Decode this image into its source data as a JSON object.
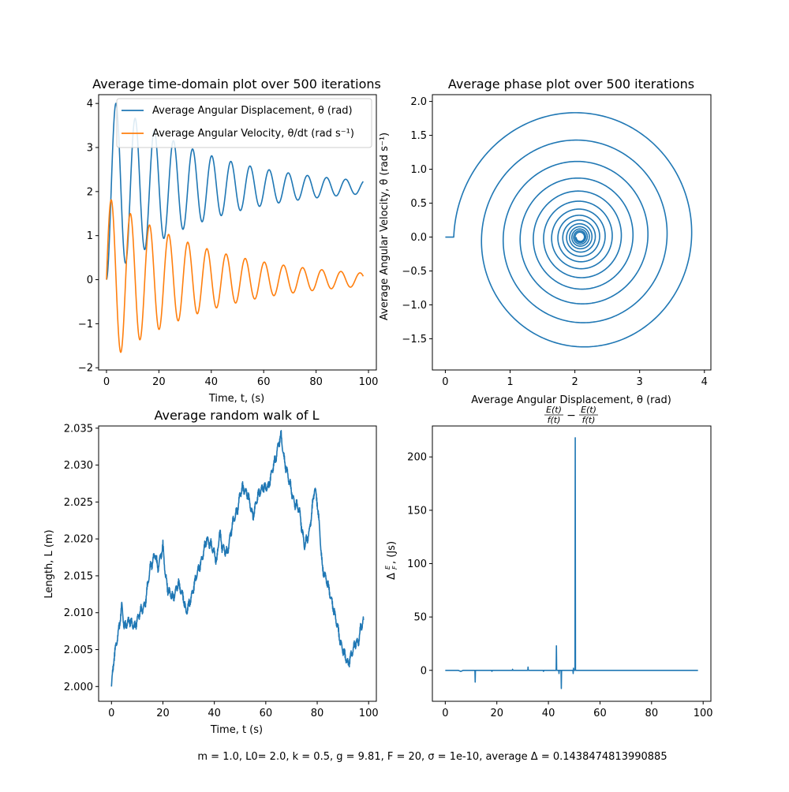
{
  "figure": {
    "footer": "m = 1.0, L0= 2.0, k = 0.5, g = 9.81, F = 20, σ = 1e-10, average Δ = 0.1438474813990885",
    "colors": {
      "blue": "#1f77b4",
      "orange": "#ff7f0e"
    }
  },
  "chart_data": [
    {
      "id": "time",
      "type": "line",
      "title": "Average time-domain plot over 500 iterations",
      "xlabel": "Time, t, (s)",
      "ylabel": "",
      "xlim": [
        -3,
        103
      ],
      "ylim": [
        -2.05,
        4.2
      ],
      "xticks": [
        0,
        20,
        40,
        60,
        80,
        100
      ],
      "xtick_labels": [
        "0",
        "20",
        "40",
        "60",
        "80",
        "100"
      ],
      "yticks": [
        -2,
        -1,
        0,
        1,
        2,
        3,
        4
      ],
      "ytick_labels": [
        "−2",
        "−1",
        "0",
        "1",
        "2",
        "3",
        "4"
      ],
      "legend": {
        "position": "top-right",
        "entries": [
          "Average Angular Displacement, θ (rad)",
          "Average Angular Velocity, θ/dt (rad s⁻¹)"
        ]
      },
      "series": [
        {
          "name": "Average Angular Displacement, θ (rad)",
          "color": "#1f77b4",
          "model": {
            "offset": 2.1,
            "amp0": 2.1,
            "amp_end": 0.15,
            "omega": 0.86,
            "t_max": 98,
            "kind": "displacement"
          }
        },
        {
          "name": "Average Angular Velocity, θ/dt (rad s⁻¹)",
          "color": "#ff7f0e",
          "model": {
            "offset": 0.0,
            "amp0": 1.9,
            "amp_end": 0.15,
            "omega": 0.86,
            "t_max": 98,
            "kind": "velocity"
          }
        }
      ]
    },
    {
      "id": "phase",
      "type": "line",
      "title": "Average phase plot over 500 iterations",
      "xlabel": "Average Angular Displacement, θ (rad)",
      "ylabel": "Average Angular Velocity, θ (rad s⁻¹)",
      "xlim": [
        -0.2,
        4.1
      ],
      "ylim": [
        -1.96,
        2.1
      ],
      "xticks": [
        0,
        1,
        2,
        3,
        4
      ],
      "xtick_labels": [
        "0",
        "1",
        "2",
        "3",
        "4"
      ],
      "yticks": [
        -1.5,
        -1.0,
        -0.5,
        0.0,
        0.5,
        1.0,
        1.5,
        2.0
      ],
      "ytick_labels": [
        "−1.5",
        "−1.0",
        "−0.5",
        "0.0",
        "0.5",
        "1.0",
        "1.5",
        "2.0"
      ],
      "series": [
        {
          "name": "phase",
          "color": "#1f77b4",
          "model": {
            "center_x": 2.08,
            "start_x": 0.0,
            "start_y": 0.0,
            "amp0": 1.95,
            "amp_end": 0.06,
            "turns": 14
          }
        }
      ]
    },
    {
      "id": "walk",
      "type": "line",
      "title": "Average random walk of L",
      "xlabel": "Time, t (s)",
      "ylabel": "Length, L (m)",
      "xlim": [
        -5,
        103
      ],
      "ylim": [
        1.998,
        2.0353
      ],
      "xticks": [
        0,
        20,
        40,
        60,
        80,
        100
      ],
      "xtick_labels": [
        "0",
        "20",
        "40",
        "60",
        "80",
        "100"
      ],
      "yticks": [
        2.0,
        2.005,
        2.01,
        2.015,
        2.02,
        2.025,
        2.03,
        2.035
      ],
      "ytick_labels": [
        "2.000",
        "2.005",
        "2.010",
        "2.015",
        "2.020",
        "2.025",
        "2.030",
        "2.035"
      ],
      "series": [
        {
          "name": "L",
          "color": "#1f77b4",
          "points": [
            [
              0,
              2.0
            ],
            [
              1,
              2.004
            ],
            [
              2,
              2.006
            ],
            [
              3,
              2.008
            ],
            [
              4,
              2.011
            ],
            [
              5,
              2.008
            ],
            [
              7,
              2.009
            ],
            [
              9,
              2.008
            ],
            [
              11,
              2.01
            ],
            [
              13,
              2.011
            ],
            [
              15,
              2.016
            ],
            [
              17,
              2.018
            ],
            [
              18,
              2.016
            ],
            [
              20,
              2.019
            ],
            [
              21,
              2.015
            ],
            [
              22,
              2.013
            ],
            [
              24,
              2.012
            ],
            [
              26,
              2.014
            ],
            [
              28,
              2.012
            ],
            [
              29,
              2.01
            ],
            [
              31,
              2.012
            ],
            [
              33,
              2.015
            ],
            [
              35,
              2.017
            ],
            [
              37,
              2.02
            ],
            [
              39,
              2.019
            ],
            [
              41,
              2.017
            ],
            [
              42,
              2.021
            ],
            [
              43,
              2.019
            ],
            [
              45,
              2.018
            ],
            [
              47,
              2.022
            ],
            [
              49,
              2.024
            ],
            [
              50,
              2.026
            ],
            [
              51,
              2.027
            ],
            [
              53,
              2.026
            ],
            [
              55,
              2.023
            ],
            [
              57,
              2.026
            ],
            [
              59,
              2.027
            ],
            [
              61,
              2.027
            ],
            [
              63,
              2.03
            ],
            [
              64,
              2.031
            ],
            [
              65,
              2.033
            ],
            [
              66,
              2.034
            ],
            [
              67,
              2.031
            ],
            [
              69,
              2.028
            ],
            [
              71,
              2.025
            ],
            [
              73,
              2.024
            ],
            [
              75,
              2.019
            ],
            [
              77,
              2.021
            ],
            [
              79,
              2.027
            ],
            [
              80,
              2.025
            ],
            [
              81,
              2.021
            ],
            [
              82,
              2.016
            ],
            [
              84,
              2.014
            ],
            [
              86,
              2.011
            ],
            [
              88,
              2.008
            ],
            [
              89,
              2.006
            ],
            [
              90,
              2.005
            ],
            [
              91,
              2.004
            ],
            [
              92,
              2.003
            ],
            [
              93,
              2.004
            ],
            [
              94,
              2.005
            ],
            [
              95,
              2.006
            ],
            [
              96,
              2.006
            ],
            [
              97,
              2.008
            ],
            [
              98,
              2.009
            ]
          ]
        }
      ]
    },
    {
      "id": "energy",
      "type": "line",
      "title": "E(t)/f(t) − E(t)/f(t)",
      "title_parts": {
        "n1": "E(t)",
        "d1": "f(t)",
        "minus": "−",
        "n2": "E(t)",
        "d2": "f(t)"
      },
      "xlabel": "",
      "ylabel": "ΔE/F, (Js)",
      "ylabel_parts": {
        "delta": "Δ",
        "num": "E",
        "den": "F",
        "unit": ", (Js)"
      },
      "xlim": [
        -5,
        103
      ],
      "ylim": [
        -29,
        229
      ],
      "xticks": [
        0,
        20,
        40,
        60,
        80,
        100
      ],
      "xtick_labels": [
        "0",
        "20",
        "40",
        "60",
        "80",
        "100"
      ],
      "yticks": [
        0,
        50,
        100,
        150,
        200
      ],
      "ytick_labels": [
        "0",
        "50",
        "100",
        "150",
        "200"
      ],
      "series": [
        {
          "name": "delta",
          "color": "#1f77b4",
          "points": [
            [
              0,
              0
            ],
            [
              5,
              0
            ],
            [
              6,
              -1
            ],
            [
              7,
              0
            ],
            [
              11.5,
              0
            ],
            [
              11.6,
              -11
            ],
            [
              11.7,
              0
            ],
            [
              18,
              0
            ],
            [
              18.1,
              -1
            ],
            [
              18.2,
              0
            ],
            [
              26,
              0
            ],
            [
              26.1,
              1
            ],
            [
              26.2,
              0
            ],
            [
              32,
              0
            ],
            [
              32.1,
              3
            ],
            [
              32.2,
              0
            ],
            [
              38,
              0
            ],
            [
              38.1,
              -1
            ],
            [
              38.2,
              0
            ],
            [
              43,
              0
            ],
            [
              43.1,
              23
            ],
            [
              43.2,
              0
            ],
            [
              44,
              0
            ],
            [
              44.1,
              -3
            ],
            [
              44.2,
              0
            ],
            [
              44.9,
              0
            ],
            [
              45,
              -17
            ],
            [
              45.1,
              0
            ],
            [
              49.5,
              0
            ],
            [
              49.6,
              -3
            ],
            [
              49.7,
              2
            ],
            [
              49.8,
              0
            ],
            [
              50.3,
              0
            ],
            [
              50.4,
              218
            ],
            [
              50.5,
              0
            ],
            [
              55,
              0
            ],
            [
              62,
              0
            ],
            [
              98,
              0
            ]
          ]
        }
      ]
    }
  ]
}
